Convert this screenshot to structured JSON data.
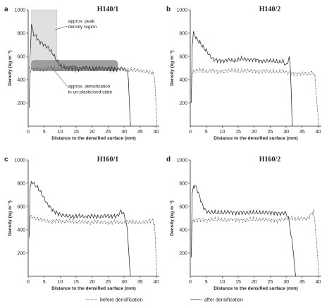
{
  "figure": {
    "legend": {
      "before_label": "before densification",
      "after_label": "after densification"
    },
    "colors": {
      "line": "#333333",
      "peak_region_fill": "#e0e0e0",
      "densification_band_fill": "#9e9e9e"
    }
  },
  "chart_data": [
    {
      "type": "line",
      "letter": "a",
      "title": "H140/1",
      "xlabel": "Distance to the densified surface (mm)",
      "ylabel": "Density (kg m⁻³)",
      "xlim": [
        0,
        41
      ],
      "ylim": [
        0,
        1000
      ],
      "xticks": [
        0,
        5,
        10,
        15,
        20,
        25,
        30,
        35,
        40
      ],
      "yticks": [
        200,
        400,
        600,
        800,
        1000
      ],
      "annotations": [
        {
          "text": [
            "approx. peak",
            "density region"
          ]
        },
        {
          "text": [
            "approx. densification",
            "in un-plasticised state"
          ]
        }
      ],
      "peak_region": {
        "x": [
          1,
          9
        ],
        "y": [
          540,
          1000
        ]
      },
      "densification_band": {
        "x": [
          1,
          28
        ],
        "y": [
          475,
          565
        ]
      },
      "series": [
        {
          "style": "dotted",
          "x": [
            0.3,
            0.6,
            1,
            3,
            5,
            7,
            9,
            11,
            13,
            15,
            17,
            19,
            21,
            23,
            25,
            27,
            29,
            31,
            33,
            35,
            37,
            39,
            39.5,
            39.8,
            40,
            40.3
          ],
          "y": [
            500,
            480,
            490,
            495,
            490,
            500,
            485,
            490,
            495,
            480,
            495,
            490,
            485,
            495,
            490,
            480,
            490,
            480,
            485,
            475,
            470,
            460,
            420,
            300,
            150,
            0
          ]
        },
        {
          "style": "solid",
          "x": [
            0.3,
            0.6,
            1,
            1.5,
            2,
            2.5,
            3,
            4,
            5,
            6,
            7,
            8,
            9,
            10,
            12,
            14,
            16,
            18,
            20,
            22,
            24,
            26,
            28,
            29,
            30,
            31,
            31.3,
            31.6,
            31.8,
            32
          ],
          "y": [
            150,
            600,
            870,
            820,
            770,
            780,
            740,
            720,
            700,
            680,
            650,
            610,
            560,
            520,
            500,
            510,
            495,
            505,
            490,
            500,
            495,
            500,
            490,
            500,
            490,
            480,
            400,
            250,
            100,
            0
          ]
        }
      ]
    },
    {
      "type": "line",
      "letter": "b",
      "title": "H140/2",
      "xlabel": "Distance to the densified surface (mm)",
      "ylabel": "Density (kg m⁻³)",
      "xlim": [
        0,
        41
      ],
      "ylim": [
        0,
        1000
      ],
      "xticks": [
        0,
        5,
        10,
        15,
        20,
        25,
        30,
        35,
        40
      ],
      "yticks": [
        200,
        400,
        600,
        800,
        1000
      ],
      "series": [
        {
          "style": "dotted",
          "x": [
            0.3,
            0.6,
            1,
            3,
            5,
            7,
            9,
            11,
            13,
            15,
            17,
            19,
            21,
            23,
            25,
            27,
            29,
            31,
            33,
            35,
            37,
            38.5,
            39,
            39.5,
            40,
            40.3
          ],
          "y": [
            280,
            450,
            470,
            480,
            470,
            480,
            470,
            475,
            480,
            470,
            475,
            480,
            470,
            475,
            470,
            465,
            470,
            460,
            450,
            455,
            445,
            460,
            420,
            250,
            80,
            0
          ]
        },
        {
          "style": "solid",
          "x": [
            0.3,
            0.6,
            1,
            1.5,
            2,
            3,
            4,
            5,
            6,
            7,
            8,
            10,
            12,
            14,
            16,
            18,
            20,
            22,
            24,
            26,
            28,
            29,
            30,
            31,
            31.3,
            31.6,
            31.8,
            32
          ],
          "y": [
            200,
            700,
            800,
            780,
            750,
            720,
            680,
            650,
            610,
            580,
            570,
            560,
            570,
            560,
            580,
            570,
            575,
            560,
            560,
            560,
            550,
            560,
            520,
            590,
            500,
            300,
            80,
            0
          ]
        }
      ]
    },
    {
      "type": "line",
      "letter": "c",
      "title": "H160/1",
      "xlabel": "Distance to the densified surface (mm)",
      "ylabel": "Density (kg m⁻³)",
      "xlim": [
        0,
        41
      ],
      "ylim": [
        0,
        1000
      ],
      "xticks": [
        0,
        5,
        10,
        15,
        20,
        25,
        30,
        35,
        40
      ],
      "yticks": [
        200,
        400,
        600,
        800,
        1000
      ],
      "series": [
        {
          "style": "dotted",
          "x": [
            0.3,
            0.6,
            1,
            3,
            5,
            7,
            9,
            11,
            13,
            15,
            17,
            19,
            21,
            23,
            25,
            27,
            29,
            31,
            33,
            35,
            37,
            39,
            39.5,
            39.8,
            40,
            40.3
          ],
          "y": [
            380,
            520,
            510,
            490,
            480,
            470,
            480,
            470,
            475,
            465,
            470,
            460,
            470,
            465,
            460,
            470,
            460,
            470,
            465,
            460,
            470,
            480,
            450,
            300,
            120,
            0
          ]
        },
        {
          "style": "solid",
          "x": [
            0.3,
            0.6,
            1,
            1.5,
            2,
            3,
            4,
            5,
            6,
            8,
            10,
            12,
            14,
            16,
            18,
            20,
            22,
            24,
            26,
            28,
            29,
            30,
            30.5,
            31,
            31.3,
            31.6,
            31.8,
            32
          ],
          "y": [
            350,
            760,
            800,
            810,
            790,
            760,
            720,
            670,
            620,
            560,
            530,
            520,
            510,
            520,
            510,
            520,
            510,
            520,
            515,
            520,
            560,
            530,
            480,
            400,
            280,
            150,
            50,
            0
          ]
        }
      ]
    },
    {
      "type": "line",
      "letter": "d",
      "title": "H160/2",
      "xlabel": "Distance to the densified surface (mm)",
      "ylabel": "Density (kg m⁻³)",
      "xlim": [
        0,
        41
      ],
      "ylim": [
        0,
        1000
      ],
      "xticks": [
        0,
        5,
        10,
        15,
        20,
        25,
        30,
        35,
        40
      ],
      "yticks": [
        200,
        400,
        600,
        800,
        1000
      ],
      "series": [
        {
          "style": "dotted",
          "x": [
            0.3,
            0.6,
            1,
            3,
            5,
            7,
            9,
            11,
            13,
            15,
            17,
            19,
            21,
            23,
            25,
            27,
            29,
            31,
            33,
            35,
            37,
            38.5,
            39,
            39.5,
            40,
            40.3
          ],
          "y": [
            200,
            450,
            480,
            490,
            480,
            485,
            490,
            480,
            490,
            485,
            480,
            490,
            485,
            490,
            485,
            480,
            490,
            500,
            490,
            495,
            500,
            560,
            470,
            300,
            100,
            0
          ]
        },
        {
          "style": "solid",
          "x": [
            0.3,
            0.6,
            1,
            1.5,
            2,
            3,
            4,
            5,
            6,
            8,
            10,
            12,
            14,
            16,
            18,
            20,
            22,
            24,
            26,
            28,
            30,
            31,
            31.5,
            32,
            32.3,
            32.6,
            32.8,
            33
          ],
          "y": [
            180,
            700,
            770,
            780,
            760,
            680,
            600,
            560,
            550,
            550,
            545,
            555,
            545,
            550,
            545,
            550,
            545,
            550,
            545,
            540,
            545,
            470,
            350,
            280,
            200,
            100,
            40,
            0
          ]
        }
      ]
    }
  ]
}
